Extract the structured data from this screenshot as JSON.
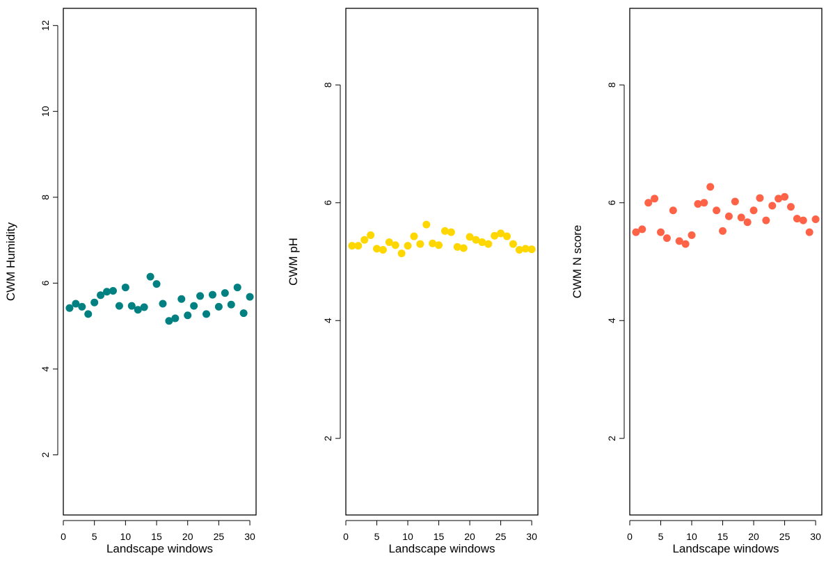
{
  "chart_data": [
    {
      "type": "scatter",
      "title": "",
      "xlabel": "Landscape windows",
      "ylabel": "CWM Humidity",
      "xlim": [
        0,
        31
      ],
      "ylim": [
        0.6,
        12.4
      ],
      "xticks": [
        0,
        5,
        10,
        15,
        20,
        25,
        30
      ],
      "yticks": [
        2,
        4,
        6,
        8,
        10,
        12
      ],
      "grid": false,
      "color": "#008080",
      "x": [
        1,
        2,
        3,
        4,
        5,
        6,
        7,
        8,
        9,
        10,
        11,
        12,
        13,
        14,
        15,
        16,
        17,
        18,
        19,
        20,
        21,
        22,
        23,
        24,
        25,
        26,
        27,
        28,
        29,
        30
      ],
      "y": [
        5.42,
        5.52,
        5.45,
        5.28,
        5.55,
        5.72,
        5.8,
        5.82,
        5.47,
        5.9,
        5.47,
        5.38,
        5.44,
        6.15,
        5.98,
        5.52,
        5.12,
        5.18,
        5.63,
        5.25,
        5.47,
        5.7,
        5.28,
        5.73,
        5.45,
        5.77,
        5.5,
        5.9,
        5.3,
        5.68
      ]
    },
    {
      "type": "scatter",
      "title": "",
      "xlabel": "Landscape windows",
      "ylabel": "CWM pH",
      "xlim": [
        0,
        31
      ],
      "ylim": [
        0.7,
        9.3
      ],
      "xticks": [
        0,
        5,
        10,
        15,
        20,
        25,
        30
      ],
      "yticks": [
        2,
        4,
        6,
        8
      ],
      "grid": false,
      "color": "#FFD700",
      "x": [
        1,
        2,
        3,
        4,
        5,
        6,
        7,
        8,
        9,
        10,
        11,
        12,
        13,
        14,
        15,
        16,
        17,
        18,
        19,
        20,
        21,
        22,
        23,
        24,
        25,
        26,
        27,
        28,
        29,
        30
      ],
      "y": [
        5.27,
        5.27,
        5.37,
        5.45,
        5.22,
        5.2,
        5.33,
        5.28,
        5.14,
        5.27,
        5.43,
        5.3,
        5.63,
        5.31,
        5.28,
        5.52,
        5.5,
        5.25,
        5.23,
        5.42,
        5.37,
        5.33,
        5.3,
        5.44,
        5.48,
        5.43,
        5.3,
        5.2,
        5.22,
        5.21
      ]
    },
    {
      "type": "scatter",
      "title": "",
      "xlabel": "Landscape windows",
      "ylabel": "CWM N score",
      "xlim": [
        0,
        31
      ],
      "ylim": [
        0.7,
        9.3
      ],
      "xticks": [
        0,
        5,
        10,
        15,
        20,
        25,
        30
      ],
      "yticks": [
        2,
        4,
        6,
        8
      ],
      "grid": false,
      "color": "#FF6347",
      "x": [
        1,
        2,
        3,
        4,
        5,
        6,
        7,
        8,
        9,
        10,
        11,
        12,
        13,
        14,
        15,
        16,
        17,
        18,
        19,
        20,
        21,
        22,
        23,
        24,
        25,
        26,
        27,
        28,
        29,
        30
      ],
      "y": [
        5.5,
        5.55,
        6.0,
        6.07,
        5.5,
        5.4,
        5.87,
        5.35,
        5.3,
        5.45,
        5.98,
        6.0,
        6.27,
        5.87,
        5.52,
        5.77,
        6.02,
        5.75,
        5.67,
        5.87,
        6.08,
        5.7,
        5.95,
        6.07,
        6.1,
        5.93,
        5.73,
        5.7,
        5.5,
        5.72
      ]
    }
  ]
}
